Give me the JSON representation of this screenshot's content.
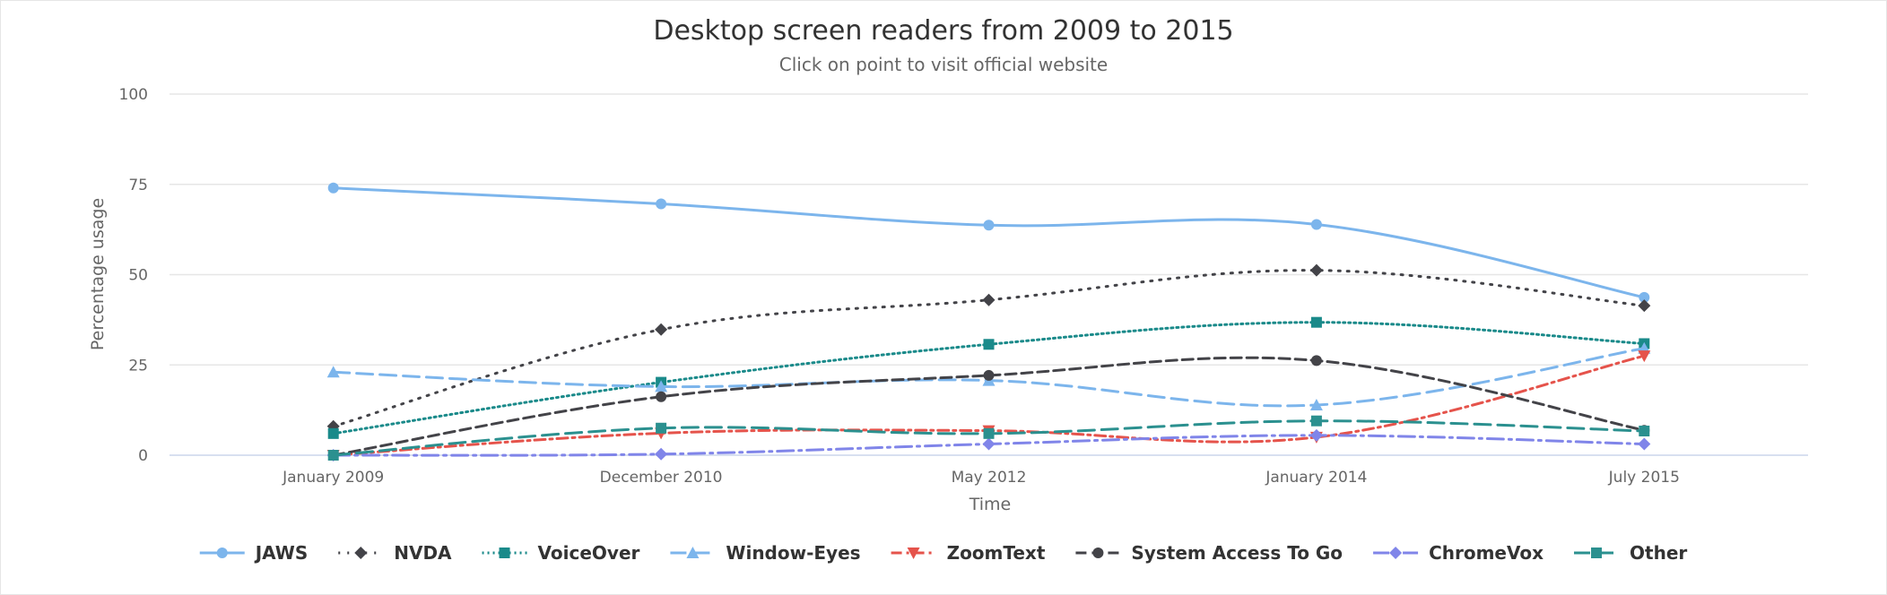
{
  "chart_data": {
    "type": "line",
    "title": "Desktop screen readers from 2009 to 2015",
    "subtitle": "Click on point to visit official website",
    "xlabel": "Time",
    "ylabel": "Percentage usage",
    "categories": [
      "January 2009",
      "December 2010",
      "May 2012",
      "January 2014",
      "July 2015"
    ],
    "ylim": [
      0,
      100
    ],
    "yticks": [
      0,
      25,
      50,
      75,
      100
    ],
    "grid": true,
    "legend_position": "bottom",
    "series": [
      {
        "name": "JAWS",
        "values": [
          74,
          69.6,
          63.7,
          63.9,
          43.7
        ],
        "color": "#7cb5ec",
        "dash": "solid",
        "marker": "circle"
      },
      {
        "name": "NVDA",
        "values": [
          8,
          34.8,
          43.0,
          51.2,
          41.4
        ],
        "color": "#434348",
        "dash": "dot",
        "marker": "diamond"
      },
      {
        "name": "VoiceOver",
        "values": [
          6,
          20.2,
          30.7,
          36.8,
          30.9
        ],
        "color": "#1a8a8a",
        "dash": "dot-fine",
        "marker": "square"
      },
      {
        "name": "Window-Eyes",
        "values": [
          23,
          19.0,
          20.7,
          13.9,
          29.6
        ],
        "color": "#7cb5ec",
        "dash": "long-dash",
        "marker": "triangle"
      },
      {
        "name": "ZoomText",
        "values": [
          0,
          6.1,
          6.8,
          5.0,
          27.5
        ],
        "color": "#e5534b",
        "dash": "dash-dot",
        "marker": "triangle-down"
      },
      {
        "name": "System Access To Go",
        "values": [
          0,
          16.2,
          22.1,
          26.2,
          6.9
        ],
        "color": "#434348",
        "dash": "dash",
        "marker": "circle"
      },
      {
        "name": "ChromeVox",
        "values": [
          0,
          0.3,
          3.1,
          5.5,
          3.1
        ],
        "color": "#8085e9",
        "dash": "long-dash-dot",
        "marker": "diamond"
      },
      {
        "name": "Other",
        "values": [
          0,
          7.5,
          6.0,
          9.5,
          6.7
        ],
        "color": "#2b908f",
        "dash": "long-dash",
        "marker": "square"
      }
    ]
  }
}
